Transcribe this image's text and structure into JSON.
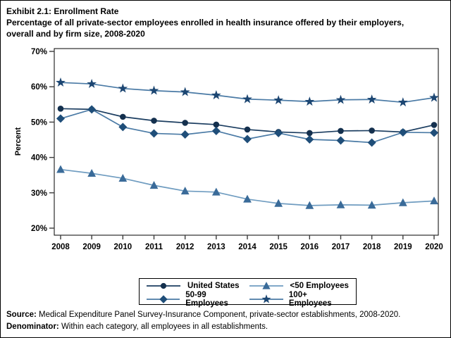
{
  "title": {
    "line1": "Exhibit 2.1: Enrollment Rate",
    "line2": "Percentage of all private-sector employees enrolled in health insurance offered by their employers, overall and by firm size, 2008-2020"
  },
  "chart_data": {
    "type": "line",
    "x": [
      2008,
      2009,
      2010,
      2011,
      2012,
      2013,
      2014,
      2015,
      2016,
      2017,
      2018,
      2019,
      2020
    ],
    "ylabel": "Percent",
    "ylim": [
      20,
      70
    ],
    "yticks": [
      20,
      30,
      40,
      50,
      60,
      70
    ],
    "ytick_labels": [
      "20%",
      "30%",
      "40%",
      "50%",
      "60%",
      "70%"
    ],
    "grid": false,
    "legend_position": "bottom",
    "series": [
      {
        "name": "United States",
        "marker": "circle",
        "marker_color": "#14304e",
        "line_color": "#1b3d60",
        "values": [
          53.8,
          53.6,
          51.5,
          50.4,
          49.8,
          49.3,
          47.9,
          47.2,
          46.9,
          47.5,
          47.6,
          47.2,
          49.2
        ]
      },
      {
        "name": "50-99 Employees",
        "marker": "diamond",
        "marker_color": "#1f4e79",
        "line_color": "#4a7aa5",
        "values": [
          51.0,
          53.6,
          48.6,
          46.8,
          46.5,
          47.5,
          45.2,
          46.9,
          45.1,
          44.8,
          44.2,
          47.1,
          47.0
        ]
      },
      {
        "name": "<50 Employees",
        "marker": "triangle",
        "marker_color": "#3a6b99",
        "line_color": "#6f9cc0",
        "values": [
          36.6,
          35.5,
          34.1,
          32.1,
          30.5,
          30.2,
          28.2,
          27.0,
          26.4,
          26.6,
          26.5,
          27.2,
          27.7
        ]
      },
      {
        "name": "100+ Employees",
        "marker": "star",
        "marker_color": "#1c4672",
        "line_color": "#4a7aa5",
        "values": [
          61.2,
          60.8,
          59.5,
          58.9,
          58.5,
          57.6,
          56.5,
          56.2,
          55.8,
          56.3,
          56.4,
          55.6,
          56.9
        ]
      }
    ]
  },
  "footer": {
    "source_label": "Source:",
    "source_text": " Medical Expenditure Panel Survey-Insurance Component, private-sector establishments, 2008-2020.",
    "denominator_label": "Denominator:",
    "denominator_text": " Within each category, all employees in all establishments."
  }
}
